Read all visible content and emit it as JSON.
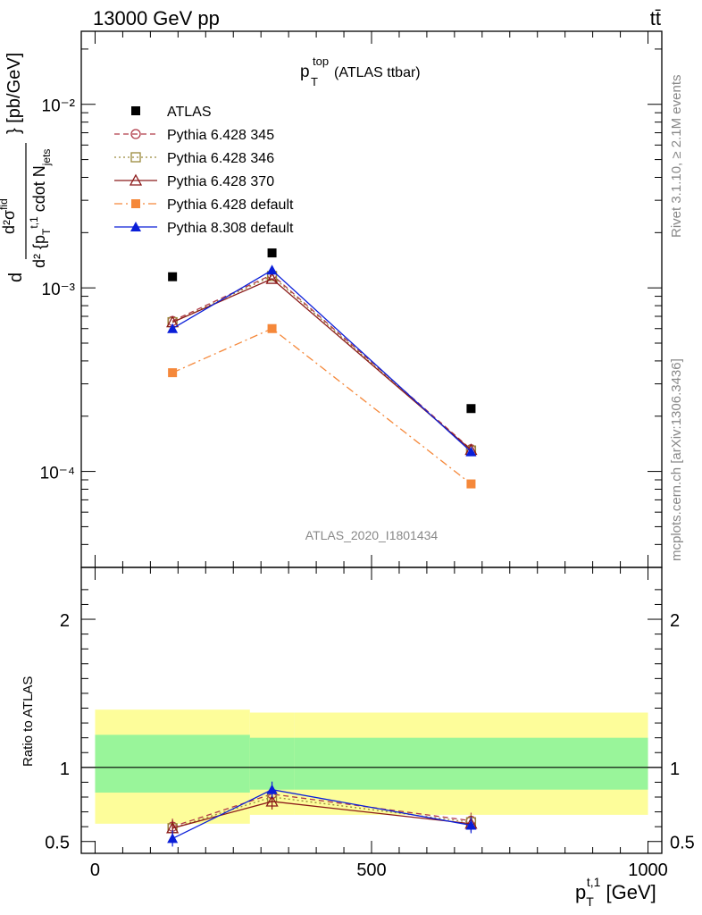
{
  "header": {
    "left": "13000 GeV pp",
    "right": "tt̄"
  },
  "side": {
    "rivet": "Rivet 3.1.10, ≥ 2.1M events",
    "mcplots": "mcplots.cern.ch [arXiv:1306.3436]"
  },
  "title": {
    "main": "p",
    "sup": "top",
    "sub": "T",
    "rest": " (ATLAS ttbar)"
  },
  "analysis_label": "ATLAS_2020_I1801434",
  "upper_ylabel": "d²σ^{fid} / d²{p_T^{t,1} cdot N_jets} [pb/GeV]",
  "lower_ylabel": "Ratio to ATLAS",
  "xlabel": "p_T^{t,1} [GeV]",
  "x_tick_labels": [
    "0",
    "500",
    "1000"
  ],
  "upper_tick_labels": [
    "10⁻²",
    "10⁻³",
    "10⁻⁴"
  ],
  "ratio_tick_labels": [
    "2",
    "1",
    "0.5"
  ],
  "colors": {
    "atlas": "#000000",
    "p345": "#b03a48",
    "p346": "#9a8a3c",
    "p370": "#8b1a1a",
    "pdef6": "#f5883a",
    "pdef8": "#0a1ed8",
    "band_inner": "#99f59a",
    "band_outer": "#fdfd9a"
  },
  "chart_data": [
    {
      "type": "line",
      "yscale": "log",
      "xlim": [
        -25,
        1025
      ],
      "ylim": [
        3e-05,
        0.025
      ],
      "x": [
        140,
        320,
        680
      ],
      "bins": [
        [
          0,
          280
        ],
        [
          280,
          360
        ],
        [
          360,
          1000
        ]
      ],
      "series": [
        {
          "name": "ATLAS",
          "values": [
            0.00115,
            0.00155,
            0.00022
          ],
          "marker": "square-filled"
        },
        {
          "name": "Pythia 6.428 345",
          "values": [
            0.00066,
            0.00118,
            0.000132
          ],
          "marker": "circle-open",
          "style": "dashed"
        },
        {
          "name": "Pythia 6.428 346",
          "values": [
            0.00065,
            0.00116,
            0.00013
          ],
          "marker": "square-open",
          "style": "dotted"
        },
        {
          "name": "Pythia 6.428 370",
          "values": [
            0.00065,
            0.00112,
            0.000131
          ],
          "marker": "triangle-open",
          "style": "solid"
        },
        {
          "name": "Pythia 6.428 default",
          "values": [
            0.000345,
            0.0006,
            8.55e-05
          ],
          "marker": "square-filled",
          "style": "dashdot"
        },
        {
          "name": "Pythia 8.308 default",
          "values": [
            0.0006,
            0.00125,
            0.000128
          ],
          "marker": "triangle-filled",
          "style": "solid"
        }
      ]
    },
    {
      "type": "line",
      "ylabel": "Ratio to ATLAS",
      "xlim": [
        -25,
        1025
      ],
      "ylim": [
        0.42,
        2.35
      ],
      "x": [
        140,
        320,
        680
      ],
      "bands": {
        "inner": [
          [
            0.83,
            1.22
          ],
          [
            0.85,
            1.2
          ],
          [
            0.85,
            1.2
          ]
        ],
        "outer": [
          [
            0.62,
            1.39
          ],
          [
            0.68,
            1.37
          ],
          [
            0.68,
            1.37
          ]
        ]
      },
      "series": [
        {
          "name": "Pythia 6.428 345",
          "values": [
            0.6,
            0.82,
            0.64
          ]
        },
        {
          "name": "Pythia 6.428 346",
          "values": [
            0.59,
            0.8,
            0.63
          ]
        },
        {
          "name": "Pythia 6.428 370",
          "values": [
            0.59,
            0.77,
            0.62
          ]
        },
        {
          "name": "Pythia 8.308 default",
          "values": [
            0.52,
            0.85,
            0.61
          ]
        }
      ]
    }
  ]
}
